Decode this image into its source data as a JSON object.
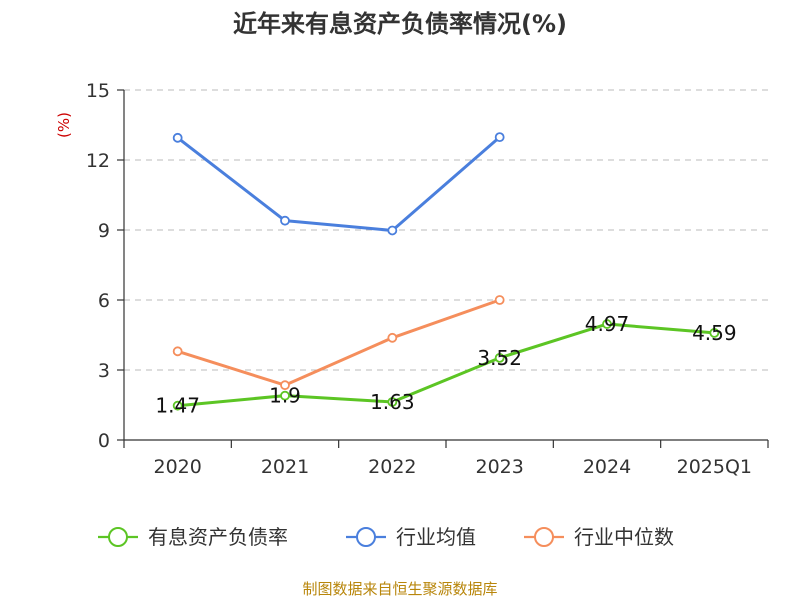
{
  "chart_data": {
    "type": "line",
    "title": "近年来有息资产负债率情况(%)",
    "ylabel": "(%)",
    "categories": [
      "2020",
      "2021",
      "2022",
      "2023",
      "2024",
      "2025Q1"
    ],
    "ylim": [
      0,
      15
    ],
    "yticks": [
      0,
      3,
      6,
      9,
      12,
      15
    ],
    "grid": true,
    "legend_position": "bottom",
    "series": [
      {
        "name": "有息资产负债率",
        "color": "#5cc524",
        "values": [
          1.47,
          1.9,
          1.63,
          3.52,
          4.97,
          4.59
        ],
        "data_labels": [
          "1.47",
          "1.9",
          "1.63",
          "3.52",
          "4.97",
          "4.59"
        ]
      },
      {
        "name": "行业均值",
        "color": "#4a7fdd",
        "values": [
          12.95,
          9.4,
          8.98,
          12.98,
          null,
          null
        ]
      },
      {
        "name": "行业中位数",
        "color": "#f58e5c",
        "values": [
          3.8,
          2.35,
          4.38,
          6.0,
          null,
          null
        ]
      }
    ]
  },
  "source": "制图数据来自恒生聚源数据库"
}
